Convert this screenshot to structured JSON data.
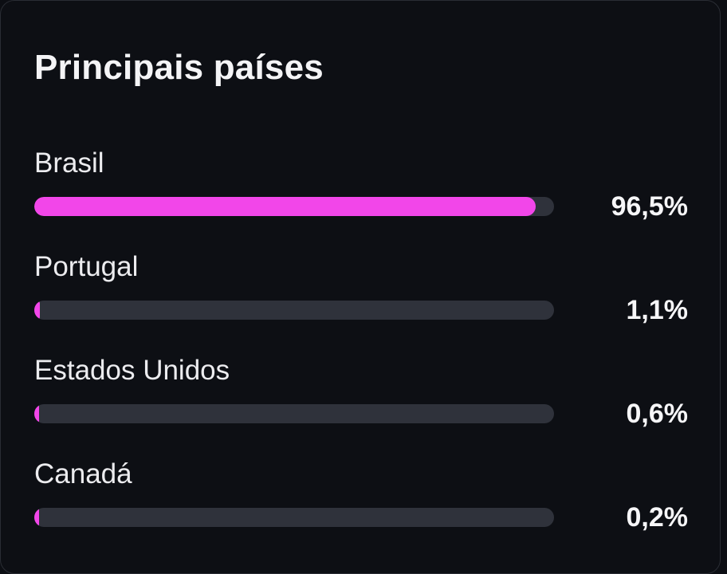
{
  "card": {
    "title": "Principais países"
  },
  "countries": [
    {
      "name": "Brasil",
      "value_label": "96,5%",
      "percent": 96.5
    },
    {
      "name": "Portugal",
      "value_label": "1,1%",
      "percent": 1.1
    },
    {
      "name": "Estados Unidos",
      "value_label": "0,6%",
      "percent": 0.6
    },
    {
      "name": "Canadá",
      "value_label": "0,2%",
      "percent": 0.2
    }
  ],
  "colors": {
    "accent": "#f246e9",
    "track": "#2f323b",
    "background": "#0d0f14"
  }
}
